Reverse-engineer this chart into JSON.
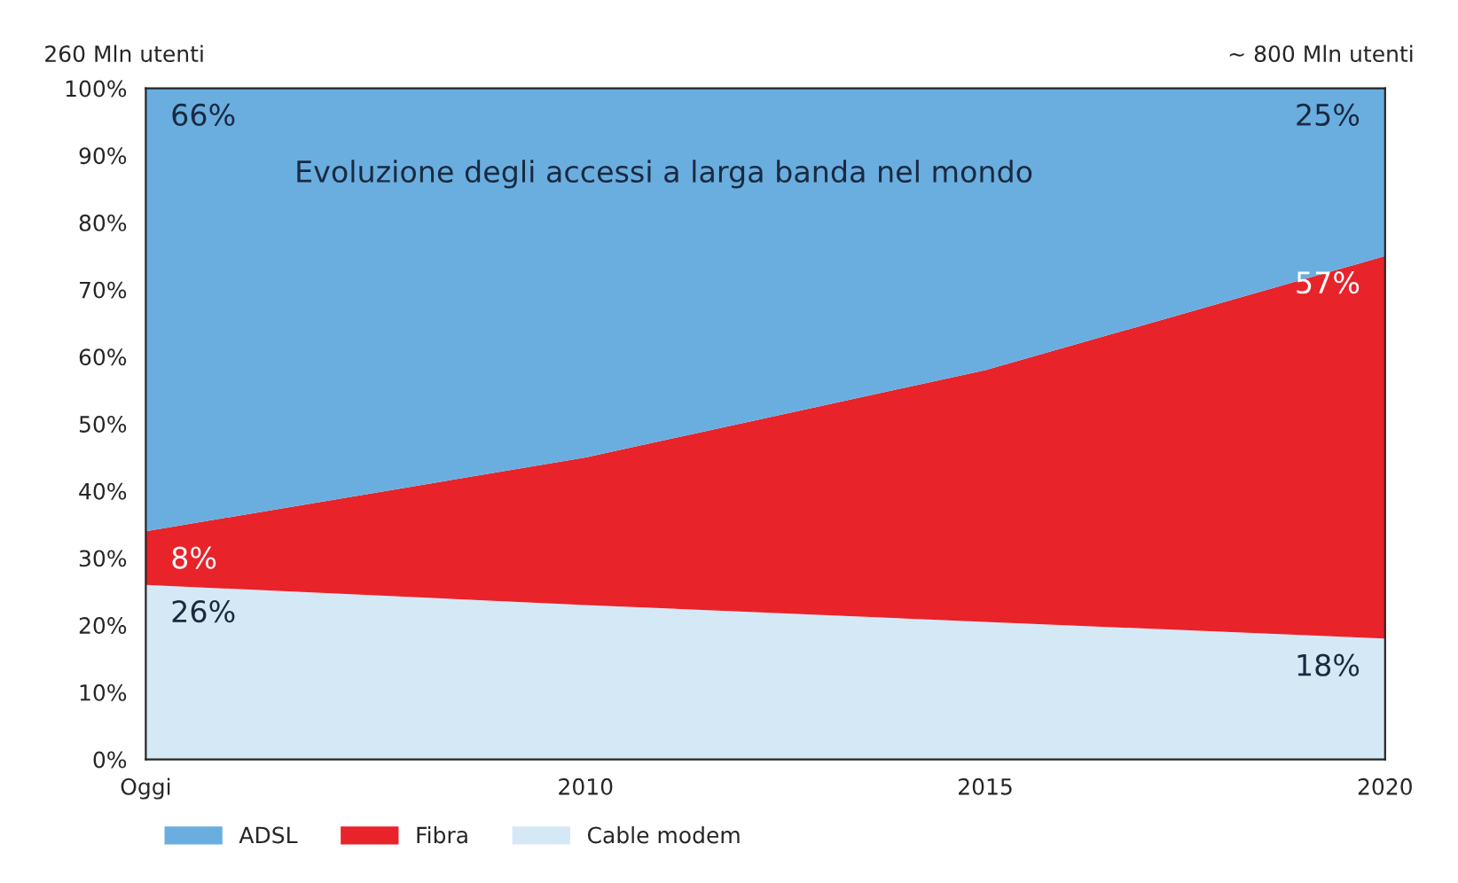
{
  "chart_data": {
    "type": "area",
    "stacked": true,
    "title": "Evoluzione degli accessi a larga banda nel mondo",
    "x": [
      2004.5,
      2010,
      2015,
      2020
    ],
    "xlim": [
      2004.5,
      2020
    ],
    "xticks": [
      {
        "value": 2004.5,
        "label": "Oggi"
      },
      2010,
      2015,
      2020
    ],
    "ylim": [
      0,
      100
    ],
    "yticks": [
      {
        "value": 0,
        "label": "0%"
      },
      {
        "value": 10,
        "label": "10%"
      },
      {
        "value": 20,
        "label": "20%"
      },
      {
        "value": 30,
        "label": "30%"
      },
      {
        "value": 40,
        "label": "40%"
      },
      {
        "value": 50,
        "label": "50%"
      },
      {
        "value": 60,
        "label": "60%"
      },
      {
        "value": 70,
        "label": "70%"
      },
      {
        "value": 80,
        "label": "80%"
      },
      {
        "value": 90,
        "label": "90%"
      },
      {
        "value": 100,
        "label": "100%"
      }
    ],
    "series": [
      {
        "name": "Cable modem",
        "color": "#d5e8f5",
        "values": [
          26,
          23,
          20.5,
          18
        ],
        "value_labels": [
          "26%",
          null,
          null,
          "18%"
        ]
      },
      {
        "name": "Fibra",
        "color": "#e8232a",
        "values": [
          8,
          22,
          37.5,
          57
        ],
        "value_labels": [
          "8%",
          null,
          null,
          "57%"
        ]
      },
      {
        "name": "ADSL",
        "color": "#6aaee0",
        "values": [
          66,
          55,
          42,
          25
        ],
        "value_labels": [
          "66%",
          null,
          null,
          "25%"
        ]
      }
    ],
    "legend": "bottom",
    "grid": false,
    "annotations": [
      "260 Mln utenti",
      "~ 800 Mln utenti"
    ]
  }
}
